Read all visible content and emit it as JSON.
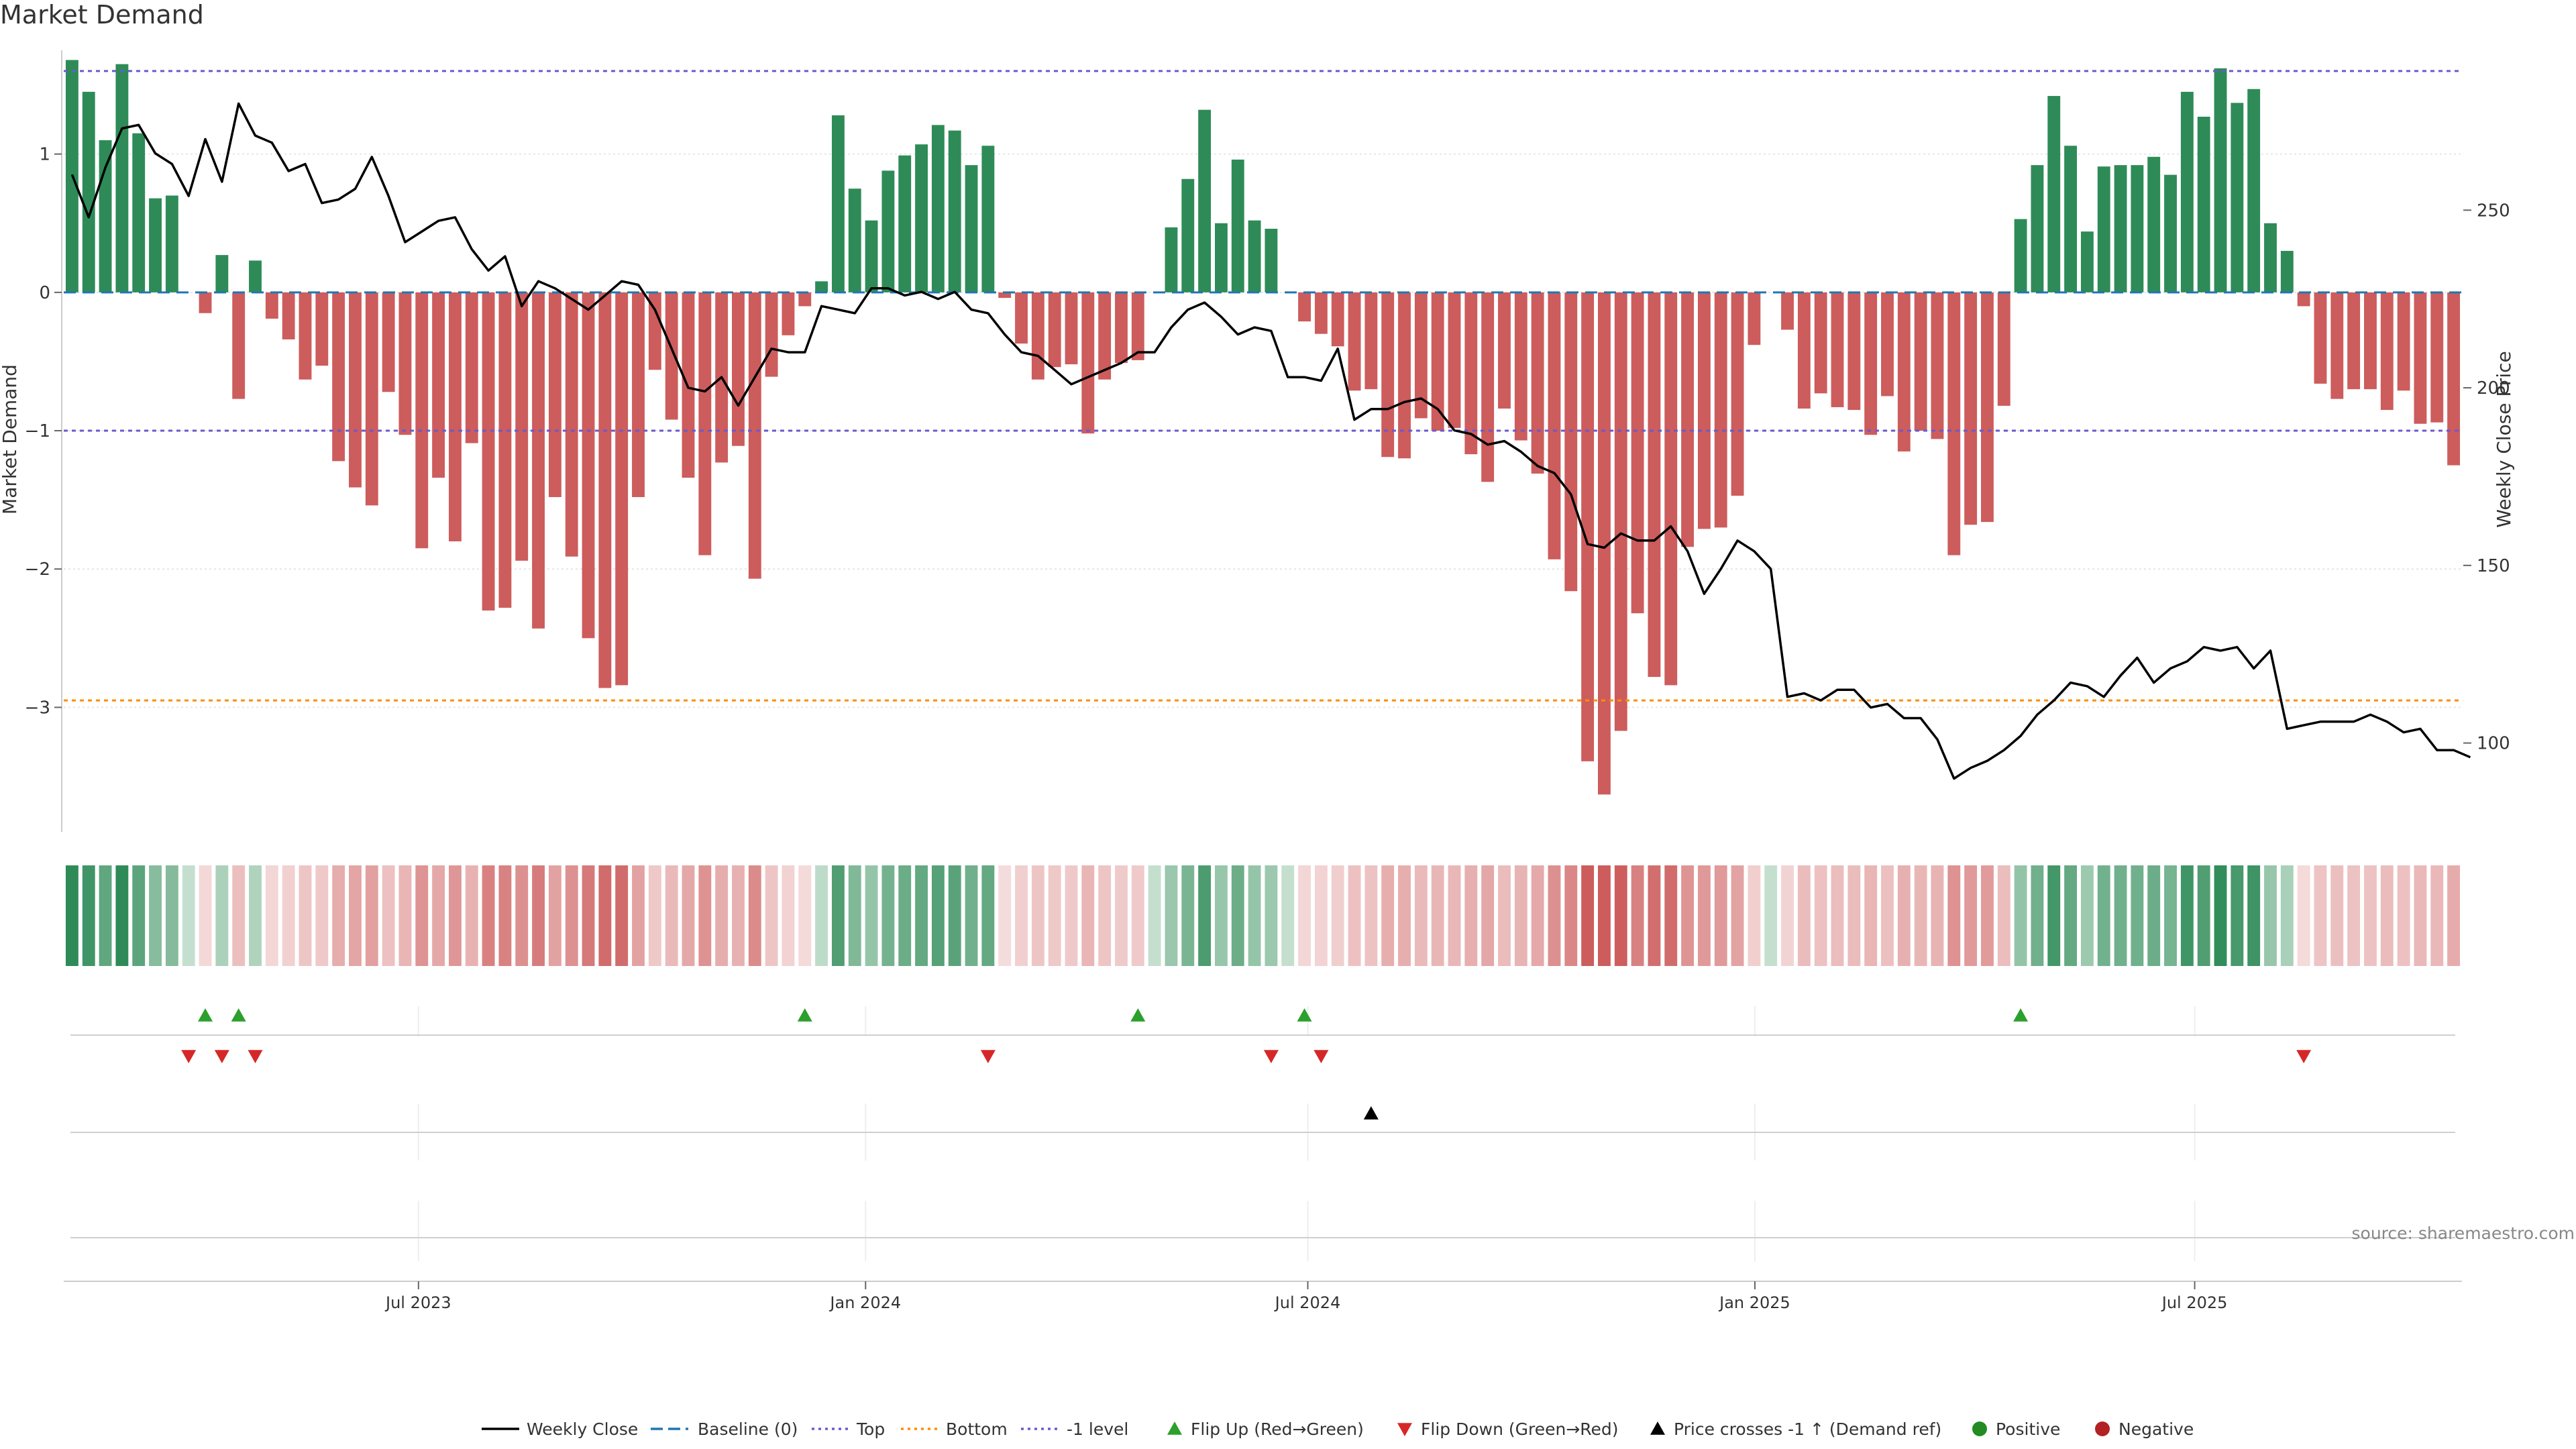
{
  "title": "Market Demand",
  "source": "source: sharemaestro.com",
  "colors": {
    "positive": "#2e8b57",
    "negative": "#cd5c5c",
    "price": "#000000",
    "top": "#6a5acd",
    "bottom": "#ff8c00",
    "baseline": "#1f77b4",
    "flip_up": "#2ca02c",
    "flip_down": "#d62728",
    "cross": "#000000",
    "pos_dot": "#228b22",
    "neg_dot": "#b22222",
    "grid": "#e6e6e6"
  },
  "chart_data": {
    "type": "bar",
    "title": "Market Demand",
    "ylabel": "Market Demand",
    "y2label": "Weekly Close Price",
    "ylim": [
      -3.9,
      1.75
    ],
    "y2lim": [
      75,
      295
    ],
    "yticks": [
      1,
      0,
      -1,
      -2,
      -3
    ],
    "ytick_labels": [
      "1",
      "0",
      "−1",
      "−2",
      "−3"
    ],
    "y2ticks": [
      250,
      200,
      150,
      100
    ],
    "x_start": "2023-02-05",
    "x_end": "2025-10-19",
    "xticks": [
      "2023-07-01",
      "2024-01-01",
      "2024-07-01",
      "2025-01-01",
      "2025-07-01"
    ],
    "xtick_labels": [
      "Jul 2023",
      "Jan 2024",
      "Jul 2024",
      "Jan 2025",
      "Jul 2025"
    ],
    "levels": {
      "top": 1.6,
      "bottom": -2.95,
      "minus_one": -1
    },
    "demand": [
      1.68,
      1.45,
      1.1,
      1.65,
      1.15,
      0.68,
      0.7,
      0.0,
      -0.15,
      0.27,
      -0.77,
      0.23,
      -0.19,
      -0.34,
      -0.63,
      -0.53,
      -1.22,
      -1.41,
      -1.54,
      -0.72,
      -1.03,
      -1.85,
      -1.34,
      -1.8,
      -1.09,
      -2.3,
      -2.28,
      -1.94,
      -2.43,
      -1.48,
      -1.91,
      -2.5,
      -2.86,
      -2.84,
      -1.48,
      -0.56,
      -0.92,
      -1.34,
      -1.9,
      -1.23,
      -1.11,
      -2.07,
      -0.61,
      -0.31,
      -0.1,
      0.08,
      1.28,
      0.75,
      0.52,
      0.88,
      0.99,
      1.07,
      1.21,
      1.17,
      0.92,
      1.06,
      -0.04,
      -0.37,
      -0.63,
      -0.54,
      -0.52,
      -1.02,
      -0.63,
      -0.51,
      -0.49,
      0.0,
      0.47,
      0.82,
      1.32,
      0.5,
      0.96,
      0.52,
      0.46,
      0.0,
      -0.21,
      -0.3,
      -0.39,
      -0.71,
      -0.7,
      -1.19,
      -1.2,
      -0.91,
      -1.0,
      -0.98,
      -1.17,
      -1.37,
      -0.84,
      -1.07,
      -1.31,
      -1.93,
      -2.16,
      -3.39,
      -3.63,
      -3.17,
      -2.32,
      -2.78,
      -2.84,
      -1.84,
      -1.71,
      -1.7,
      -1.47,
      -0.38,
      0.0,
      -0.27,
      -0.84,
      -0.73,
      -0.83,
      -0.85,
      -1.03,
      -0.75,
      -1.15,
      -1.0,
      -1.06,
      -1.9,
      -1.68,
      -1.66,
      -0.82,
      0.53,
      0.92,
      1.42,
      1.06,
      0.44,
      0.91,
      0.92,
      0.92,
      0.98,
      0.85,
      1.45,
      1.27,
      1.62,
      1.37,
      1.47,
      0.5,
      0.3,
      -0.1,
      -0.66,
      -0.77,
      -0.7,
      -0.7,
      -0.85,
      -0.71,
      -0.95,
      -0.94,
      -1.25
    ],
    "price": [
      260,
      248,
      262,
      273,
      274,
      266,
      263,
      254,
      270,
      258,
      280,
      271,
      269,
      261,
      263,
      252,
      253,
      256,
      265,
      254,
      241,
      244,
      247,
      248,
      239,
      233,
      237,
      223,
      230,
      228,
      225,
      222,
      226,
      230,
      229,
      222,
      211,
      200,
      199,
      203,
      195,
      203,
      211,
      210,
      210,
      223,
      222,
      221,
      228,
      228,
      226,
      227,
      225,
      227,
      222,
      221,
      215,
      210,
      209,
      205,
      201,
      203,
      205,
      207,
      210,
      210,
      217,
      222,
      224,
      220,
      215,
      217,
      216,
      203,
      203,
      202,
      211,
      191,
      194,
      194,
      196,
      197,
      194,
      188,
      187,
      184,
      185,
      182,
      178,
      176,
      170,
      156,
      155,
      159,
      157,
      157,
      161,
      154,
      142,
      149,
      157,
      154,
      149,
      113,
      114,
      112,
      115,
      115,
      110,
      111,
      107,
      107,
      101,
      90,
      93,
      95,
      98,
      102,
      108,
      112,
      117,
      116,
      113,
      119,
      124,
      117,
      121,
      123,
      127,
      126,
      127,
      121,
      126,
      104,
      105,
      106,
      106,
      106,
      108,
      106,
      103,
      104,
      98,
      98,
      96
    ],
    "flip_up_idx": [
      8,
      10,
      44,
      64,
      74,
      117
    ],
    "flip_down_idx": [
      7,
      9,
      11,
      55,
      72,
      75,
      134
    ],
    "cross_idx": [
      78
    ],
    "series": [
      {
        "name": "Weekly Close"
      },
      {
        "name": "Baseline (0)"
      },
      {
        "name": "Top"
      },
      {
        "name": "Bottom"
      },
      {
        "name": "-1 level"
      },
      {
        "name": "Flip Up (Red→Green)"
      },
      {
        "name": "Flip Down (Green→Red)"
      },
      {
        "name": "Price crosses -1 ↑ (Demand ref)"
      },
      {
        "name": "Positive"
      },
      {
        "name": "Negative"
      }
    ]
  }
}
